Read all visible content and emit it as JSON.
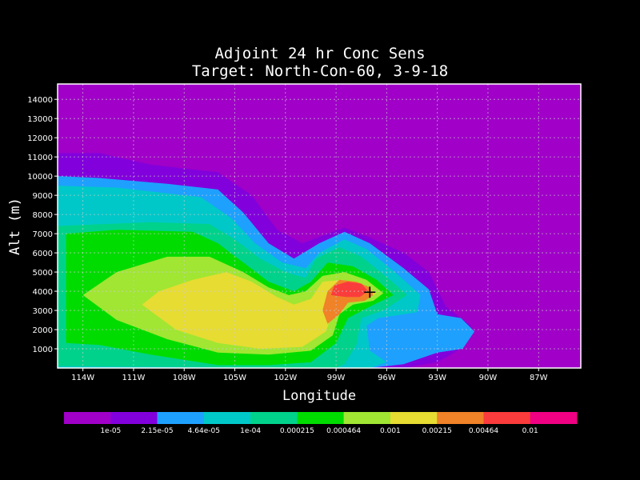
{
  "chart_data": {
    "type": "contour",
    "title": "Adjoint 24 hr Conc Sens",
    "subtitle": "Target: North-Con-60, 3-9-18",
    "xlabel": "Longitude",
    "ylabel": "Alt (m)",
    "xlim": [
      -115.5,
      -84.5
    ],
    "ylim": [
      0,
      14800
    ],
    "x_ticks": [
      {
        "value": -114,
        "label": "114W"
      },
      {
        "value": -111,
        "label": "111W"
      },
      {
        "value": -108,
        "label": "108W"
      },
      {
        "value": -105,
        "label": "105W"
      },
      {
        "value": -102,
        "label": "102W"
      },
      {
        "value": -99,
        "label": "99W"
      },
      {
        "value": -96,
        "label": "96W"
      },
      {
        "value": -93,
        "label": "93W"
      },
      {
        "value": -90,
        "label": "90W"
      },
      {
        "value": -87,
        "label": "87W"
      }
    ],
    "y_ticks": [
      1000,
      2000,
      3000,
      4000,
      5000,
      6000,
      7000,
      8000,
      9000,
      10000,
      11000,
      12000,
      13000,
      14000
    ],
    "grid": true,
    "background_color": "#a000c8",
    "colorbar": {
      "colors": [
        "#a000c8",
        "#8200dc",
        "#1ea0ff",
        "#00c8c8",
        "#00d28c",
        "#00dc00",
        "#a0e632",
        "#e6dc32",
        "#f08228",
        "#fa3c3c",
        "#f00082"
      ],
      "labels": [
        "1e-05",
        "2.15e-05",
        "4.64e-05",
        "1e-04",
        "0.000215",
        "0.000464",
        "0.001",
        "0.00215",
        "0.00464",
        "0.01"
      ]
    },
    "contour_levels": [
      {
        "level": 1,
        "color": "#8200dc",
        "polygon": [
          [
            -115.5,
            0
          ],
          [
            -115.5,
            11200
          ],
          [
            -113,
            11200
          ],
          [
            -110,
            10600
          ],
          [
            -106,
            10200
          ],
          [
            -104,
            9000
          ],
          [
            -102.5,
            7200
          ],
          [
            -101,
            6500
          ],
          [
            -99.5,
            7000
          ],
          [
            -98.5,
            7300
          ],
          [
            -97,
            6800
          ],
          [
            -95,
            6000
          ],
          [
            -93.5,
            5000
          ],
          [
            -92.5,
            3200
          ],
          [
            -91,
            2200
          ],
          [
            -91.8,
            900
          ],
          [
            -93,
            300
          ],
          [
            -95,
            0
          ]
        ]
      },
      {
        "level": 2,
        "color": "#1ea0ff",
        "polygon": [
          [
            -115.5,
            0
          ],
          [
            -115.5,
            10000
          ],
          [
            -113,
            9900
          ],
          [
            -109,
            9600
          ],
          [
            -106,
            9300
          ],
          [
            -104.5,
            8100
          ],
          [
            -103,
            6500
          ],
          [
            -101.5,
            5700
          ],
          [
            -100,
            6500
          ],
          [
            -98.5,
            7100
          ],
          [
            -97,
            6500
          ],
          [
            -95,
            5200
          ],
          [
            -93.5,
            4100
          ],
          [
            -93,
            2800
          ],
          [
            -91.6,
            2600
          ],
          [
            -90.8,
            1900
          ],
          [
            -91.5,
            1000
          ],
          [
            -93,
            800
          ],
          [
            -95,
            200
          ],
          [
            -97,
            0
          ]
        ]
      },
      {
        "level": 3,
        "color": "#00c8c8",
        "polygon": [
          [
            -115.5,
            0
          ],
          [
            -115.5,
            9500
          ],
          [
            -112,
            9400
          ],
          [
            -107,
            8900
          ],
          [
            -105.2,
            7800
          ],
          [
            -103.8,
            6500
          ],
          [
            -102.2,
            5500
          ],
          [
            -100.8,
            5200
          ],
          [
            -100,
            6000
          ],
          [
            -98.5,
            6700
          ],
          [
            -97.2,
            6200
          ],
          [
            -95.5,
            5000
          ],
          [
            -94,
            3800
          ],
          [
            -94.2,
            2900
          ],
          [
            -96.5,
            2600
          ],
          [
            -97.2,
            2200
          ],
          [
            -97,
            900
          ],
          [
            -96,
            300
          ],
          [
            -97,
            0
          ]
        ]
      },
      {
        "level": 4,
        "color": "#00d28c",
        "polygon": [
          [
            -115.5,
            100
          ],
          [
            -115.5,
            7400
          ],
          [
            -110,
            7600
          ],
          [
            -106.5,
            7500
          ],
          [
            -105,
            6700
          ],
          [
            -103.5,
            5700
          ],
          [
            -102,
            5000
          ],
          [
            -100.8,
            4700
          ],
          [
            -100.2,
            5700
          ],
          [
            -98.8,
            6300
          ],
          [
            -97.5,
            5800
          ],
          [
            -95.8,
            4600
          ],
          [
            -94.8,
            3800
          ],
          [
            -96.2,
            3000
          ],
          [
            -97.5,
            2600
          ],
          [
            -97.8,
            1200
          ],
          [
            -98.5,
            200
          ],
          [
            -99,
            0
          ]
        ]
      },
      {
        "level": 5,
        "color": "#00dc00",
        "polygon": [
          [
            -115,
            1300
          ],
          [
            -115,
            7000
          ],
          [
            -112,
            7200
          ],
          [
            -107.5,
            7100
          ],
          [
            -106,
            6500
          ],
          [
            -104.5,
            5500
          ],
          [
            -103,
            4500
          ],
          [
            -101.5,
            4000
          ],
          [
            -100.5,
            4500
          ],
          [
            -99.5,
            5500
          ],
          [
            -98,
            5300
          ],
          [
            -96.6,
            4600
          ],
          [
            -95.6,
            3800
          ],
          [
            -97,
            3200
          ],
          [
            -98.3,
            2600
          ],
          [
            -99,
            1300
          ],
          [
            -100.5,
            300
          ],
          [
            -103,
            150
          ],
          [
            -106,
            150
          ],
          [
            -110,
            700
          ],
          [
            -113,
            1200
          ]
        ]
      },
      {
        "level": 6,
        "color": "#a0e632",
        "polygon": [
          [
            -114,
            3800
          ],
          [
            -112,
            5000
          ],
          [
            -109,
            5800
          ],
          [
            -106.5,
            5800
          ],
          [
            -104.5,
            5000
          ],
          [
            -103,
            4200
          ],
          [
            -101.8,
            3800
          ],
          [
            -100.8,
            4000
          ],
          [
            -99.8,
            4800
          ],
          [
            -98.5,
            5000
          ],
          [
            -97.2,
            4600
          ],
          [
            -96.2,
            3900
          ],
          [
            -96.8,
            3500
          ],
          [
            -98,
            3300
          ],
          [
            -98.8,
            2800
          ],
          [
            -99.2,
            1700
          ],
          [
            -100.5,
            900
          ],
          [
            -103,
            700
          ],
          [
            -106,
            800
          ],
          [
            -109,
            1500
          ],
          [
            -112,
            2500
          ]
        ]
      },
      {
        "level": 7,
        "color": "#e6dc32",
        "polygon": [
          [
            -110.5,
            3300
          ],
          [
            -109.5,
            4000
          ],
          [
            -107.5,
            4600
          ],
          [
            -105.5,
            5000
          ],
          [
            -104,
            4500
          ],
          [
            -102.5,
            3700
          ],
          [
            -101.5,
            3300
          ],
          [
            -100.5,
            3600
          ],
          [
            -99.8,
            4500
          ],
          [
            -98.6,
            4600
          ],
          [
            -97.4,
            4300
          ],
          [
            -96.6,
            3900
          ],
          [
            -97.2,
            3600
          ],
          [
            -98.2,
            3500
          ],
          [
            -99.2,
            2900
          ],
          [
            -99.6,
            1900
          ],
          [
            -101,
            1100
          ],
          [
            -103.5,
            1000
          ],
          [
            -106,
            1300
          ],
          [
            -108.5,
            2000
          ]
        ]
      },
      {
        "level": 8,
        "color": "#f08228",
        "polygon": [
          [
            -99.5,
            2300
          ],
          [
            -99.8,
            3000
          ],
          [
            -99.5,
            4000
          ],
          [
            -98.8,
            4600
          ],
          [
            -97.8,
            4500
          ],
          [
            -97,
            4200
          ],
          [
            -96.8,
            3800
          ],
          [
            -97.3,
            3500
          ],
          [
            -98.3,
            3400
          ],
          [
            -98.8,
            2800
          ]
        ]
      },
      {
        "level": 9,
        "color": "#fa3c3c",
        "polygon": [
          [
            -99.3,
            3800
          ],
          [
            -99.1,
            4300
          ],
          [
            -98.3,
            4500
          ],
          [
            -97.5,
            4400
          ],
          [
            -97.1,
            4000
          ],
          [
            -97.6,
            3700
          ],
          [
            -98.4,
            3700
          ]
        ]
      }
    ],
    "marker": {
      "x": -97,
      "y": 3950,
      "symbol": "+"
    }
  }
}
